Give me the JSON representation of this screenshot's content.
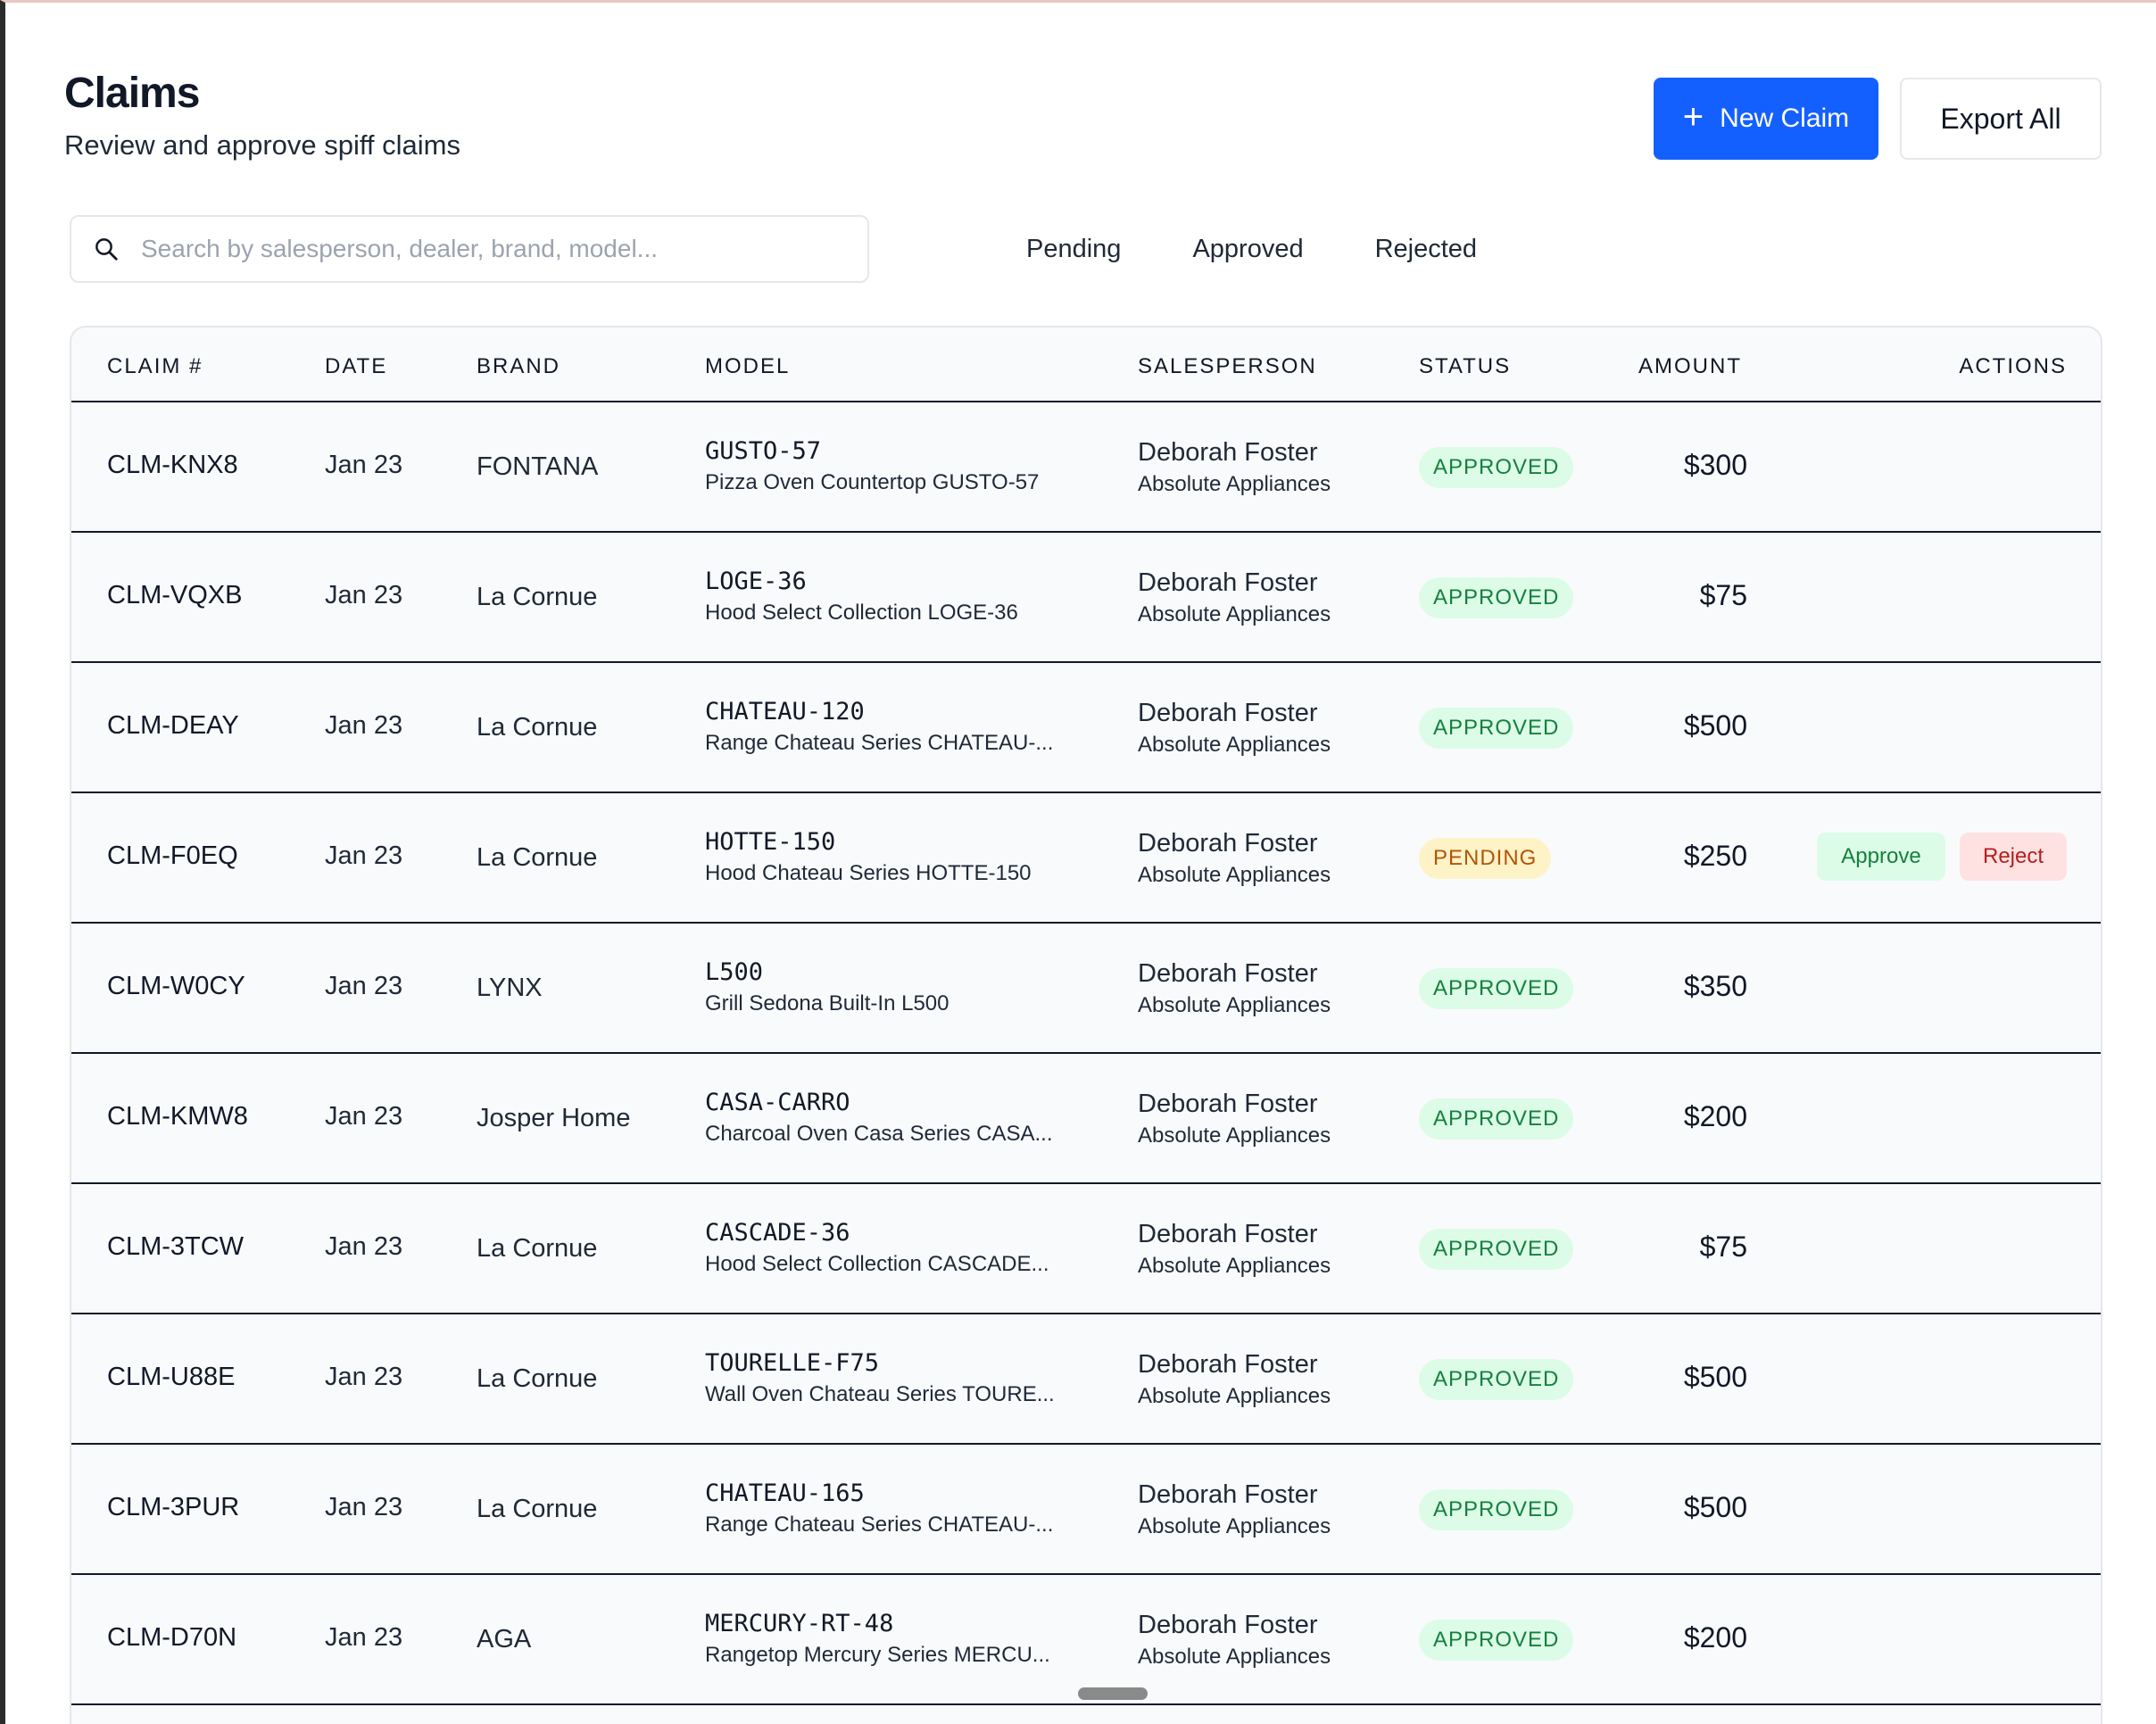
{
  "header": {
    "title": "Claims",
    "subtitle": "Review and approve spiff claims",
    "new_claim_label": "New Claim",
    "export_label": "Export All"
  },
  "search": {
    "placeholder": "Search by salesperson, dealer, brand, model...",
    "value": ""
  },
  "filters": [
    "Pending",
    "Approved",
    "Rejected"
  ],
  "table": {
    "columns": [
      "CLAIM #",
      "DATE",
      "BRAND",
      "MODEL",
      "SALESPERSON",
      "STATUS",
      "AMOUNT",
      "ACTIONS"
    ],
    "rows": [
      {
        "id": "CLM-KNX8",
        "date": "Jan 23",
        "brand": "FONTANA",
        "model": "GUSTO-57",
        "model_desc": "Pizza Oven Countertop GUSTO-57",
        "salesperson": "Deborah Foster",
        "dealer": "Absolute Appliances",
        "status": "APPROVED",
        "status_kind": "approved",
        "amount": "$300",
        "actions": []
      },
      {
        "id": "CLM-VQXB",
        "date": "Jan 23",
        "brand": "La Cornue",
        "model": "LOGE-36",
        "model_desc": "Hood Select Collection LOGE-36",
        "salesperson": "Deborah Foster",
        "dealer": "Absolute Appliances",
        "status": "APPROVED",
        "status_kind": "approved",
        "amount": "$75",
        "actions": []
      },
      {
        "id": "CLM-DEAY",
        "date": "Jan 23",
        "brand": "La Cornue",
        "model": "CHATEAU-120",
        "model_desc": "Range Chateau Series CHATEAU-...",
        "salesperson": "Deborah Foster",
        "dealer": "Absolute Appliances",
        "status": "APPROVED",
        "status_kind": "approved",
        "amount": "$500",
        "actions": []
      },
      {
        "id": "CLM-F0EQ",
        "date": "Jan 23",
        "brand": "La Cornue",
        "model": "HOTTE-150",
        "model_desc": "Hood Chateau Series HOTTE-150",
        "salesperson": "Deborah Foster",
        "dealer": "Absolute Appliances",
        "status": "PENDING",
        "status_kind": "pending",
        "amount": "$250",
        "actions": [
          "Approve",
          "Reject"
        ]
      },
      {
        "id": "CLM-W0CY",
        "date": "Jan 23",
        "brand": "LYNX",
        "model": "L500",
        "model_desc": "Grill Sedona Built-In L500",
        "salesperson": "Deborah Foster",
        "dealer": "Absolute Appliances",
        "status": "APPROVED",
        "status_kind": "approved",
        "amount": "$350",
        "actions": []
      },
      {
        "id": "CLM-KMW8",
        "date": "Jan 23",
        "brand": "Josper Home",
        "model": "CASA-CARRO",
        "model_desc": "Charcoal Oven Casa Series CASA...",
        "salesperson": "Deborah Foster",
        "dealer": "Absolute Appliances",
        "status": "APPROVED",
        "status_kind": "approved",
        "amount": "$200",
        "actions": []
      },
      {
        "id": "CLM-3TCW",
        "date": "Jan 23",
        "brand": "La Cornue",
        "model": "CASCADE-36",
        "model_desc": "Hood Select Collection CASCADE...",
        "salesperson": "Deborah Foster",
        "dealer": "Absolute Appliances",
        "status": "APPROVED",
        "status_kind": "approved",
        "amount": "$75",
        "actions": []
      },
      {
        "id": "CLM-U88E",
        "date": "Jan 23",
        "brand": "La Cornue",
        "model": "TOURELLE-F75",
        "model_desc": "Wall Oven Chateau Series TOURE...",
        "salesperson": "Deborah Foster",
        "dealer": "Absolute Appliances",
        "status": "APPROVED",
        "status_kind": "approved",
        "amount": "$500",
        "actions": []
      },
      {
        "id": "CLM-3PUR",
        "date": "Jan 23",
        "brand": "La Cornue",
        "model": "CHATEAU-165",
        "model_desc": "Range Chateau Series CHATEAU-...",
        "salesperson": "Deborah Foster",
        "dealer": "Absolute Appliances",
        "status": "APPROVED",
        "status_kind": "approved",
        "amount": "$500",
        "actions": []
      },
      {
        "id": "CLM-D70N",
        "date": "Jan 23",
        "brand": "AGA",
        "model": "MERCURY-RT-48",
        "model_desc": "Rangetop Mercury Series MERCU...",
        "salesperson": "Deborah Foster",
        "dealer": "Absolute Appliances",
        "status": "APPROVED",
        "status_kind": "approved",
        "amount": "$200",
        "actions": []
      }
    ]
  },
  "icons": {
    "search": "search-icon",
    "plus": "plus-icon"
  },
  "colors": {
    "primary": "#1460ff",
    "approved_bg": "#dcfce7",
    "approved_text": "#15803d",
    "pending_bg": "#fef3c7",
    "pending_text": "#b45309",
    "reject_bg": "#fee2e2",
    "reject_text": "#b91c1c"
  }
}
